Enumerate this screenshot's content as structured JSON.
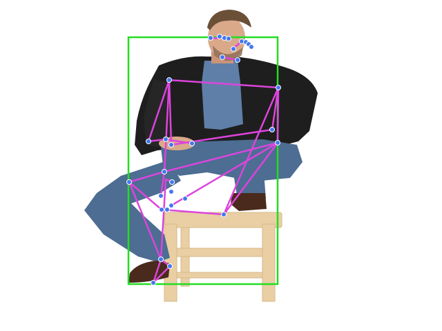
{
  "scene": {
    "subject": "person",
    "bbox_color": "#22dd22",
    "skeleton_color": "#dd44dd",
    "keypoint_color": "#4477ee",
    "jacket_color": "#1e1e1e",
    "shirt_color": "#5f7fa8",
    "jeans_color": "#4d6d92",
    "stool_color": "#e9cfa3",
    "skin_color": "#d9a98a",
    "hair_color": "#6b5038",
    "shoe_color": "#4a2a1c"
  }
}
